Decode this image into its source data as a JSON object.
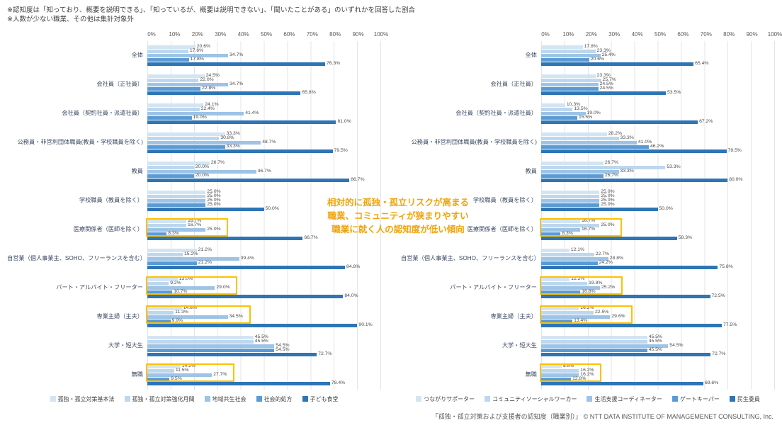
{
  "notes": [
    "※認知度は「知っており、概要を説明できる」、「知っているが、概要は説明できない」、「聞いたことがある」のいずれかを回答した割合",
    "※人数が少ない職業、その他は集計対象外"
  ],
  "annotation": {
    "color": "#F0A30A",
    "lines": [
      "相対的に孤独・孤立リスクが高まる",
      "職業、コミュニティが狭まりやすい",
      "職業に就く人の認知度が低い傾向"
    ]
  },
  "footer": "「孤独・孤立対策および支援者の認知度（職業別）」 © NTT DATA INSTITUTE OF MANAGEMENET CONSULTING, Inc.",
  "colors": [
    "#d3e5f3",
    "#bdd7ee",
    "#9dc3e6",
    "#5b9bd5",
    "#2e75b6"
  ],
  "highlight_color": "#FFC000",
  "axis_ticks": [
    "0%",
    "10%",
    "20%",
    "30%",
    "40%",
    "50%",
    "60%",
    "70%",
    "80%",
    "90%",
    "100%"
  ],
  "categories": [
    "全体",
    "会社員（正社員）",
    "会社員（契約社員・派遣社員）",
    "公務員・非営利団体職員(教員・学校職員を除く)",
    "教員",
    "学校職員（教員を除く）",
    "医療関係者（医師を除く）",
    "自営業（個人事業主、SOHO、フリーランスを含む）",
    "パート・アルバイト・フリーター",
    "専業主婦（主夫）",
    "大学・短大生",
    "無職"
  ],
  "chart_data": [
    {
      "type": "bar",
      "orientation": "horizontal",
      "xlim": [
        0,
        100
      ],
      "grid": true,
      "legend_position": "bottom",
      "series": [
        "孤独・孤立対策基本法",
        "孤独・孤立対策強化月間",
        "地域共生社会",
        "社会的処方",
        "子ども食堂"
      ],
      "values": [
        [
          20.6,
          17.6,
          34.7,
          17.8,
          76.3
        ],
        [
          24.5,
          22.0,
          34.7,
          22.8,
          65.8
        ],
        [
          24.1,
          22.4,
          41.4,
          19.0,
          81.0
        ],
        [
          33.3,
          30.8,
          48.7,
          33.3,
          79.5
        ],
        [
          26.7,
          20.0,
          46.7,
          20.0,
          86.7
        ],
        [
          25.0,
          25.0,
          25.0,
          25.0,
          50.0
        ],
        [
          16.7,
          16.7,
          25.0,
          8.3,
          66.7
        ],
        [
          21.2,
          15.2,
          39.4,
          21.2,
          84.8
        ],
        [
          13.0,
          9.2,
          29.0,
          10.7,
          84.0
        ],
        [
          14.8,
          11.3,
          34.5,
          9.9,
          90.1
        ],
        [
          45.5,
          45.5,
          54.5,
          54.5,
          72.7
        ],
        [
          14.2,
          11.5,
          27.7,
          9.5,
          78.4
        ]
      ],
      "highlight_rows": [
        6,
        8,
        9,
        11
      ]
    },
    {
      "type": "bar",
      "orientation": "horizontal",
      "xlim": [
        0,
        100
      ],
      "grid": true,
      "legend_position": "bottom",
      "series": [
        "つながりサポーター",
        "コミュニティソーシャルワーカー",
        "生活支援コーディネーター",
        "ゲートキーパー",
        "民生委員"
      ],
      "values": [
        [
          17.8,
          23.3,
          25.4,
          20.6,
          65.4
        ],
        [
          23.3,
          25.7,
          24.5,
          24.5,
          53.5
        ],
        [
          10.3,
          13.5,
          19.0,
          15.5,
          67.2
        ],
        [
          28.2,
          33.3,
          41.0,
          46.2,
          79.5
        ],
        [
          26.7,
          53.3,
          33.3,
          26.7,
          80.0
        ],
        [
          25.0,
          25.0,
          25.0,
          25.0,
          50.0
        ],
        [
          16.7,
          25.0,
          16.7,
          8.3,
          58.3
        ],
        [
          12.1,
          22.7,
          28.8,
          24.2,
          75.8
        ],
        [
          12.2,
          19.8,
          25.2,
          16.8,
          72.5
        ],
        [
          16.2,
          22.5,
          29.6,
          13.4,
          77.5
        ],
        [
          45.5,
          45.5,
          54.5,
          45.5,
          72.7
        ],
        [
          8.8,
          16.2,
          16.2,
          12.8,
          69.6
        ]
      ],
      "highlight_rows": [
        6,
        8,
        9,
        11
      ]
    }
  ]
}
